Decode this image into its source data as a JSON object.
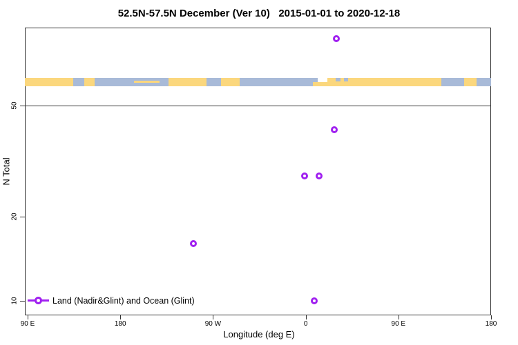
{
  "title": "52.5N-57.5N December (Ver 10)   2015-01-01 to 2020-12-18",
  "colors": {
    "marker_purple": "#A020F0",
    "land_yellow": "#FBD77D",
    "ocean_blue": "#A8BAD8",
    "axis_black": "#333333"
  },
  "axes": {
    "x": {
      "label": "Longitude (deg E)",
      "ticks": [
        {
          "axis_deg": 90,
          "label": "90 E"
        },
        {
          "axis_deg": 180,
          "label": "180"
        },
        {
          "axis_deg": 270,
          "label": "90 W"
        },
        {
          "axis_deg": 360,
          "label": "0"
        },
        {
          "axis_deg": 450,
          "label": "90 E"
        },
        {
          "axis_deg": 540,
          "label": "180"
        }
      ]
    },
    "y": {
      "label": "N Total",
      "scale": "log",
      "ticks": [
        {
          "value": 50,
          "label": "50"
        },
        {
          "value": 20,
          "label": "20"
        },
        {
          "value": 10,
          "label": "10"
        }
      ]
    }
  },
  "legend": {
    "label": "Land (Nadir&Glint) and Ocean (Glint)",
    "marker": "open-circle",
    "color": "#A020F0"
  },
  "chart_data": {
    "type": "scatter",
    "title": "52.5N-57.5N December (Ver 10)   2015-01-01 to 2020-12-18",
    "xlabel": "Longitude (deg E)",
    "ylabel": "N Total",
    "y_scale": "log",
    "ylim": [
      9,
      95
    ],
    "x_axis_deg_range": [
      87,
      540
    ],
    "x_tick_axis_deg": [
      90,
      180,
      270,
      360,
      450,
      540
    ],
    "x_tick_labels": [
      "90 E",
      "180",
      "90 W",
      "0",
      "90 E",
      "180"
    ],
    "reference_line_y": 50,
    "legend_position": "bottom-left",
    "series": [
      {
        "name": "Land (Nadir&Glint) and Ocean (Glint)",
        "marker": "open-circle",
        "color": "#A020F0",
        "points": [
          {
            "axis_deg": 390,
            "lon_deg_east": 30,
            "n_total": 87
          },
          {
            "axis_deg": 388,
            "lon_deg_east": 28,
            "n_total": 41
          },
          {
            "axis_deg": 359,
            "lon_deg_east": -1,
            "n_total": 28
          },
          {
            "axis_deg": 373,
            "lon_deg_east": 13,
            "n_total": 28
          },
          {
            "axis_deg": 251,
            "lon_deg_east": -109,
            "n_total": 16
          },
          {
            "axis_deg": 368,
            "lon_deg_east": 8,
            "n_total": 10
          }
        ]
      }
    ]
  },
  "map_strip": {
    "description": "world land/ocean band 52.5N-57.5N",
    "land_color": "#FBD77D",
    "ocean_color": "#A8BAD8",
    "segments": [
      {
        "from_deg": 87,
        "to_deg": 134,
        "kind": "land"
      },
      {
        "from_deg": 134,
        "to_deg": 145,
        "kind": "ocean"
      },
      {
        "from_deg": 145,
        "to_deg": 155,
        "kind": "land"
      },
      {
        "from_deg": 155,
        "to_deg": 227,
        "kind": "ocean"
      },
      {
        "from_deg": 193,
        "to_deg": 218,
        "kind": "land-sliver"
      },
      {
        "from_deg": 227,
        "to_deg": 264,
        "kind": "land"
      },
      {
        "from_deg": 264,
        "to_deg": 278,
        "kind": "ocean"
      },
      {
        "from_deg": 278,
        "to_deg": 296,
        "kind": "land"
      },
      {
        "from_deg": 296,
        "to_deg": 372,
        "kind": "ocean"
      },
      {
        "from_deg": 367,
        "to_deg": 381,
        "kind": "land-bottom"
      },
      {
        "from_deg": 381,
        "to_deg": 492,
        "kind": "land"
      },
      {
        "from_deg": 389,
        "to_deg": 394,
        "kind": "ocean-top"
      },
      {
        "from_deg": 397,
        "to_deg": 401,
        "kind": "ocean-top"
      },
      {
        "from_deg": 492,
        "to_deg": 514,
        "kind": "ocean"
      },
      {
        "from_deg": 514,
        "to_deg": 526,
        "kind": "land"
      },
      {
        "from_deg": 526,
        "to_deg": 540,
        "kind": "ocean"
      }
    ]
  }
}
